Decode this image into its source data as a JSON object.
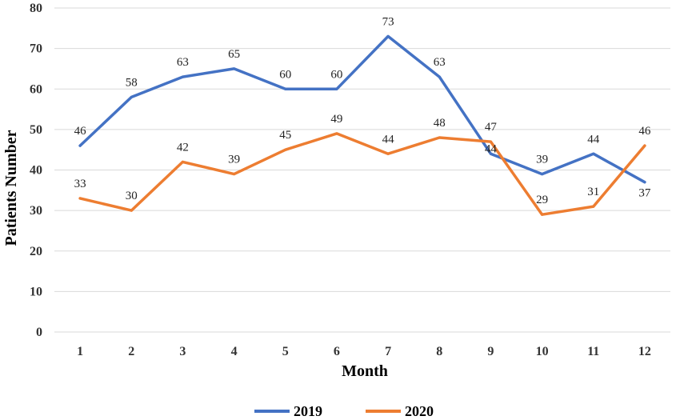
{
  "chart_data": {
    "type": "line",
    "title": "",
    "xlabel": "Month",
    "ylabel": "Patients Number",
    "categories": [
      "1",
      "2",
      "3",
      "4",
      "5",
      "6",
      "7",
      "8",
      "9",
      "10",
      "11",
      "12"
    ],
    "ylim": [
      0,
      80
    ],
    "yticks": [
      0,
      10,
      20,
      30,
      40,
      50,
      60,
      70,
      80
    ],
    "grid": true,
    "legend_position": "bottom",
    "series": [
      {
        "name": "2019",
        "color": "#4472C4",
        "values": [
          46,
          58,
          63,
          65,
          60,
          60,
          73,
          63,
          44,
          39,
          44,
          37
        ]
      },
      {
        "name": "2020",
        "color": "#ED7D31",
        "values": [
          33,
          30,
          42,
          39,
          45,
          49,
          44,
          48,
          47,
          29,
          31,
          46
        ]
      }
    ]
  }
}
